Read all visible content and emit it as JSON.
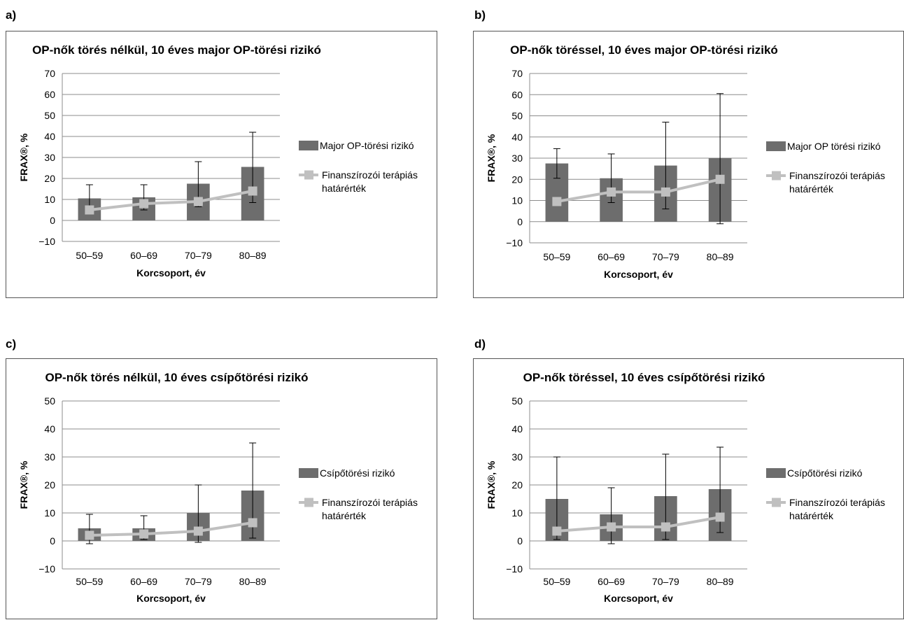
{
  "panels": [
    {
      "letter": "a)"
    },
    {
      "letter": "b)"
    },
    {
      "letter": "c)"
    },
    {
      "letter": "d)"
    }
  ],
  "chart_data": [
    {
      "type": "bar",
      "title": "OP-nők törés nélkül, 10 éves major OP-törési rizikó",
      "xlabel": "Korcsoport, év",
      "ylabel": "FRAX®, %",
      "ylim": [
        -10,
        70
      ],
      "yticks": [
        -10,
        0,
        10,
        20,
        30,
        40,
        50,
        60,
        70
      ],
      "categories": [
        "50–59",
        "60–69",
        "70–79",
        "80–89"
      ],
      "grid": true,
      "legend_position": "right",
      "series": [
        {
          "name": "Major OP-törési rizikó",
          "kind": "bar",
          "color": "#6d6d6d",
          "values": [
            10.5,
            11,
            17.5,
            25.5
          ],
          "error_low": [
            5,
            5,
            6.5,
            8.5
          ],
          "error_high": [
            17,
            17,
            28,
            42
          ]
        },
        {
          "name": "Finanszírozói terápiás határérték",
          "kind": "line",
          "color": "#c0c0c0",
          "values": [
            5,
            8,
            9,
            14
          ]
        }
      ],
      "legend": [
        {
          "lines": [
            "Major OP-törési rizikó"
          ]
        },
        {
          "lines": [
            "Finanszírozói  terápiás",
            "határérték"
          ]
        }
      ]
    },
    {
      "type": "bar",
      "title": "OP-nők töréssel, 10 éves major OP-törési rizikó",
      "xlabel": "Korcsoport, év",
      "ylabel": "FRAX®, %",
      "ylim": [
        -10,
        70
      ],
      "yticks": [
        -10,
        0,
        10,
        20,
        30,
        40,
        50,
        60,
        70
      ],
      "categories": [
        "50–59",
        "60–69",
        "70–79",
        "80–89"
      ],
      "grid": true,
      "legend_position": "right",
      "series": [
        {
          "name": "Major OP törési rizikó",
          "kind": "bar",
          "color": "#6d6d6d",
          "values": [
            27.5,
            20.5,
            26.5,
            30
          ],
          "error_low": [
            20.5,
            9,
            6,
            -1
          ],
          "error_high": [
            34.5,
            32,
            47,
            60.5
          ]
        },
        {
          "name": "Finanszírozói terápiás határérték",
          "kind": "line",
          "color": "#c0c0c0",
          "values": [
            9.5,
            14,
            14,
            20
          ]
        }
      ],
      "legend": [
        {
          "lines": [
            "Major OP törési rizikó"
          ]
        },
        {
          "lines": [
            "Finanszírozói  terápiás",
            "határérték"
          ]
        }
      ]
    },
    {
      "type": "bar",
      "title": "OP-nők törés nélkül, 10 éves csípőtörési rizikó",
      "xlabel": "Korcsoport, év",
      "ylabel": "FRAX®, %",
      "ylim": [
        -10,
        50
      ],
      "yticks": [
        -10,
        0,
        10,
        20,
        30,
        40,
        50
      ],
      "categories": [
        "50–59",
        "60–69",
        "70–79",
        "80–89"
      ],
      "grid": true,
      "legend_position": "right",
      "series": [
        {
          "name": "Csípőtörési rizikó",
          "kind": "bar",
          "color": "#6d6d6d",
          "values": [
            4.5,
            4.5,
            10,
            18
          ],
          "error_low": [
            -1,
            0.5,
            -0.5,
            1
          ],
          "error_high": [
            9.5,
            9,
            20,
            35
          ]
        },
        {
          "name": "Finanszírozói terápiás határérték",
          "kind": "line",
          "color": "#c0c0c0",
          "values": [
            2,
            2.5,
            3.5,
            6.5
          ]
        }
      ],
      "legend": [
        {
          "lines": [
            "Csípőtörési rizikó"
          ]
        },
        {
          "lines": [
            "Finanszírozói  terápiás",
            "határérték"
          ]
        }
      ]
    },
    {
      "type": "bar",
      "title": "OP-nők töréssel, 10 éves csípőtörési rizikó",
      "xlabel": "Korcsoport, év",
      "ylabel": "FRAX®, %",
      "ylim": [
        -10,
        50
      ],
      "yticks": [
        -10,
        0,
        10,
        20,
        30,
        40,
        50
      ],
      "categories": [
        "50–59",
        "60–69",
        "70–79",
        "80–89"
      ],
      "grid": true,
      "legend_position": "right",
      "series": [
        {
          "name": "Csípőtörési rizikó",
          "kind": "bar",
          "color": "#6d6d6d",
          "values": [
            15,
            9.5,
            16,
            18.5
          ],
          "error_low": [
            0.5,
            -1,
            0.5,
            3
          ],
          "error_high": [
            30,
            19,
            31,
            33.5
          ]
        },
        {
          "name": "Finanszírozói terápiás határérték",
          "kind": "line",
          "color": "#c0c0c0",
          "values": [
            3.5,
            5,
            5,
            8.5
          ]
        }
      ],
      "legend": [
        {
          "lines": [
            "Csípőtörési rizikó"
          ]
        },
        {
          "lines": [
            "Finanszírozói  terápiás",
            "határérték"
          ]
        }
      ]
    }
  ]
}
